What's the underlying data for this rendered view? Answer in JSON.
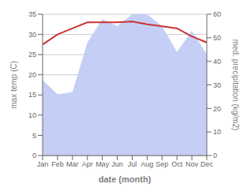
{
  "chart_data": {
    "type": "line",
    "xlabel": "date (month)",
    "ylabel": "max temp (C)",
    "y2label": "med. precipitation (kg/m2)",
    "categories": [
      "Jan",
      "Feb",
      "Mar",
      "Apr",
      "May",
      "Jun",
      "Jul",
      "Aug",
      "Sep",
      "Oct",
      "Nov",
      "Dec"
    ],
    "series": [
      {
        "name": "max temp (C)",
        "type": "line",
        "color": "#cc3333",
        "values": [
          27.5,
          30.0,
          31.5,
          33.0,
          33.0,
          33.0,
          33.2,
          32.5,
          32.0,
          31.5,
          29.5,
          28.0
        ]
      },
      {
        "name": "med. precipitation (kg/m2)",
        "type": "area",
        "axis": "y2",
        "color": "#c5cff5",
        "values": [
          32,
          26,
          27,
          48,
          58,
          55,
          60,
          60,
          55,
          44,
          53,
          43
        ]
      }
    ],
    "ylim": [
      0,
      35
    ],
    "yticks": [
      0,
      5,
      10,
      15,
      20,
      25,
      30,
      35
    ],
    "y2lim": [
      0,
      60
    ],
    "y2ticks": [
      0,
      10,
      20,
      30,
      40,
      50,
      60
    ],
    "grid": true
  }
}
